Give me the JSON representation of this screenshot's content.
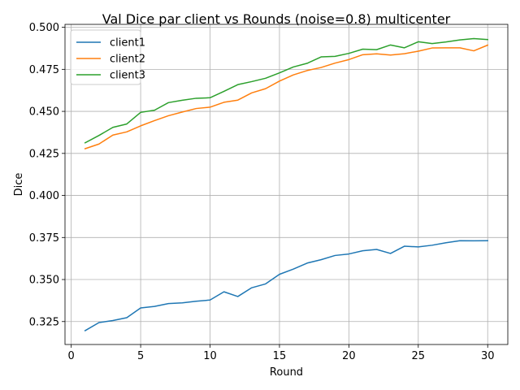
{
  "chart_data": {
    "type": "line",
    "title": "Val Dice par client vs Rounds (noise=0.8) multicenter",
    "xlabel": "Round",
    "ylabel": "Dice",
    "xlim": [
      -0.45,
      31.45
    ],
    "ylim": [
      0.31136,
      0.50174
    ],
    "xticks": [
      0,
      5,
      10,
      15,
      20,
      25,
      30
    ],
    "yticks": [
      0.325,
      0.35,
      0.375,
      0.4,
      0.425,
      0.45,
      0.475,
      0.5
    ],
    "ytick_labels": [
      "0.325",
      "0.350",
      "0.375",
      "0.400",
      "0.425",
      "0.450",
      "0.475",
      "0.500"
    ],
    "grid": true,
    "legend_position": "upper-left",
    "x": [
      1,
      2,
      3,
      4,
      5,
      6,
      7,
      8,
      9,
      10,
      11,
      12,
      13,
      14,
      15,
      16,
      17,
      18,
      19,
      20,
      21,
      22,
      23,
      24,
      25,
      26,
      27,
      28,
      29,
      30
    ],
    "series": [
      {
        "name": "client1",
        "color": "#1f77b4",
        "values": [
          0.3196,
          0.3244,
          0.3256,
          0.3273,
          0.3331,
          0.334,
          0.3357,
          0.3361,
          0.3371,
          0.3378,
          0.3427,
          0.3399,
          0.3451,
          0.3474,
          0.3531,
          0.3562,
          0.3598,
          0.3618,
          0.3643,
          0.3652,
          0.3671,
          0.3679,
          0.3655,
          0.3698,
          0.3694,
          0.3704,
          0.3719,
          0.3731,
          0.373,
          0.3731
        ]
      },
      {
        "name": "client2",
        "color": "#ff7f0e",
        "values": [
          0.4278,
          0.4306,
          0.4359,
          0.4378,
          0.4414,
          0.4445,
          0.4474,
          0.4496,
          0.4517,
          0.4525,
          0.4554,
          0.4567,
          0.461,
          0.4635,
          0.468,
          0.4717,
          0.4743,
          0.4761,
          0.4787,
          0.4808,
          0.4837,
          0.4842,
          0.4835,
          0.4843,
          0.4858,
          0.4877,
          0.4878,
          0.4878,
          0.486,
          0.4894
        ]
      },
      {
        "name": "client3",
        "color": "#2ca02c",
        "values": [
          0.4313,
          0.4357,
          0.4405,
          0.4425,
          0.4494,
          0.4507,
          0.4552,
          0.4566,
          0.4578,
          0.4581,
          0.4619,
          0.4659,
          0.4677,
          0.4697,
          0.4729,
          0.4764,
          0.4786,
          0.4824,
          0.4827,
          0.4845,
          0.487,
          0.4867,
          0.4895,
          0.4878,
          0.4914,
          0.4903,
          0.4913,
          0.4925,
          0.4933,
          0.4927
        ]
      }
    ]
  }
}
